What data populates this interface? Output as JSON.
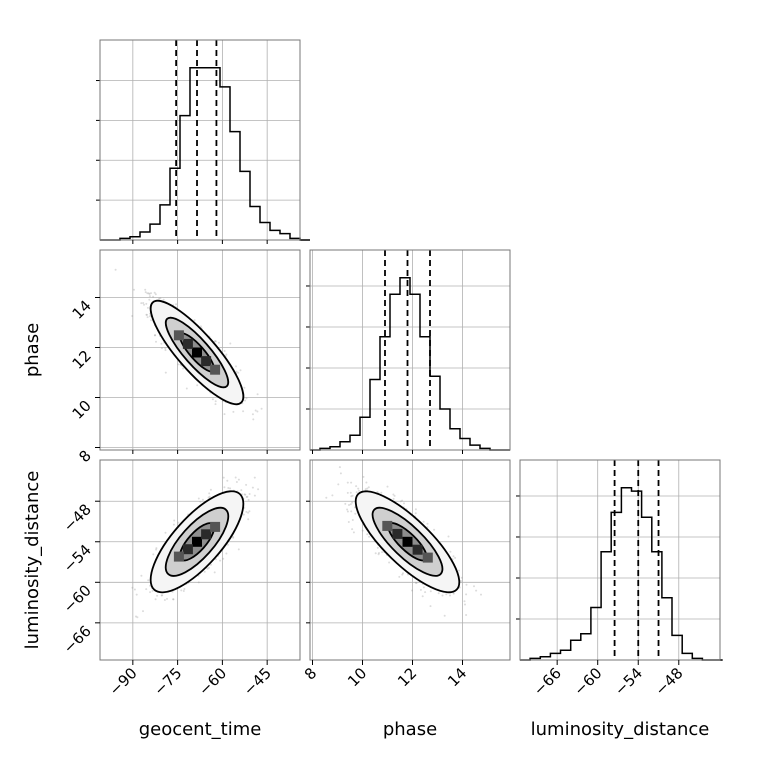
{
  "chart_data": {
    "type": "corner",
    "parameters": [
      "geocent_time",
      "phase",
      "luminosity_distance"
    ],
    "axis_labels": {
      "geocent_time": "geocent_time",
      "phase": "phase",
      "luminosity_distance": "luminosity_distance"
    },
    "ranges": {
      "geocent_time": [
        -101,
        -34
      ],
      "phase": [
        7.9,
        15.9
      ],
      "luminosity_distance": [
        -71.5,
        -41.9
      ]
    },
    "ticks": {
      "geocent_time": [
        -90,
        -75,
        -60,
        -45
      ],
      "phase": [
        8,
        10,
        12,
        14
      ],
      "luminosity_distance": [
        -66,
        -60,
        -54,
        -48
      ]
    },
    "tick_labels": {
      "geocent_time": [
        "−90",
        "−75",
        "−60",
        "−45"
      ],
      "phase": [
        "8",
        "10",
        "12",
        "14"
      ],
      "luminosity_distance": [
        "−66",
        "−60",
        "−54",
        "−48"
      ]
    },
    "quantiles": {
      "geocent_time": [
        -75.5,
        -68.5,
        -62.0
      ],
      "phase": [
        10.9,
        11.8,
        12.7
      ],
      "luminosity_distance": [
        -57.5,
        -54.0,
        -51.0
      ]
    },
    "histograms": {
      "geocent_time": {
        "edges_start": -101,
        "bin_width": 3.35,
        "counts": [
          0,
          0,
          1,
          2,
          5,
          10,
          22,
          45,
          78,
          108,
          108,
          108,
          96,
          68,
          43,
          21,
          11,
          6,
          4,
          1,
          0
        ]
      },
      "phase": {
        "edges_start": 7.9,
        "bin_width": 0.4,
        "counts": [
          0,
          1,
          2,
          5,
          9,
          20,
          43,
          69,
          95,
          105,
          95,
          69,
          45,
          25,
          13,
          7,
          3,
          1,
          0,
          0
        ]
      },
      "luminosity_distance": {
        "edges_start": -71.5,
        "bin_width": 1.5,
        "counts": [
          0,
          1,
          2,
          4,
          6,
          12,
          16,
          32,
          66,
          90,
          105,
          103,
          87,
          66,
          38,
          15,
          4,
          1,
          0,
          0
        ]
      }
    },
    "pairs": [
      {
        "x": "geocent_time",
        "y": "phase",
        "correlation": -0.85
      },
      {
        "x": "geocent_time",
        "y": "luminosity_distance",
        "correlation": 0.75
      },
      {
        "x": "phase",
        "y": "luminosity_distance",
        "correlation": -0.8
      }
    ],
    "grid": true,
    "legend": "none"
  }
}
